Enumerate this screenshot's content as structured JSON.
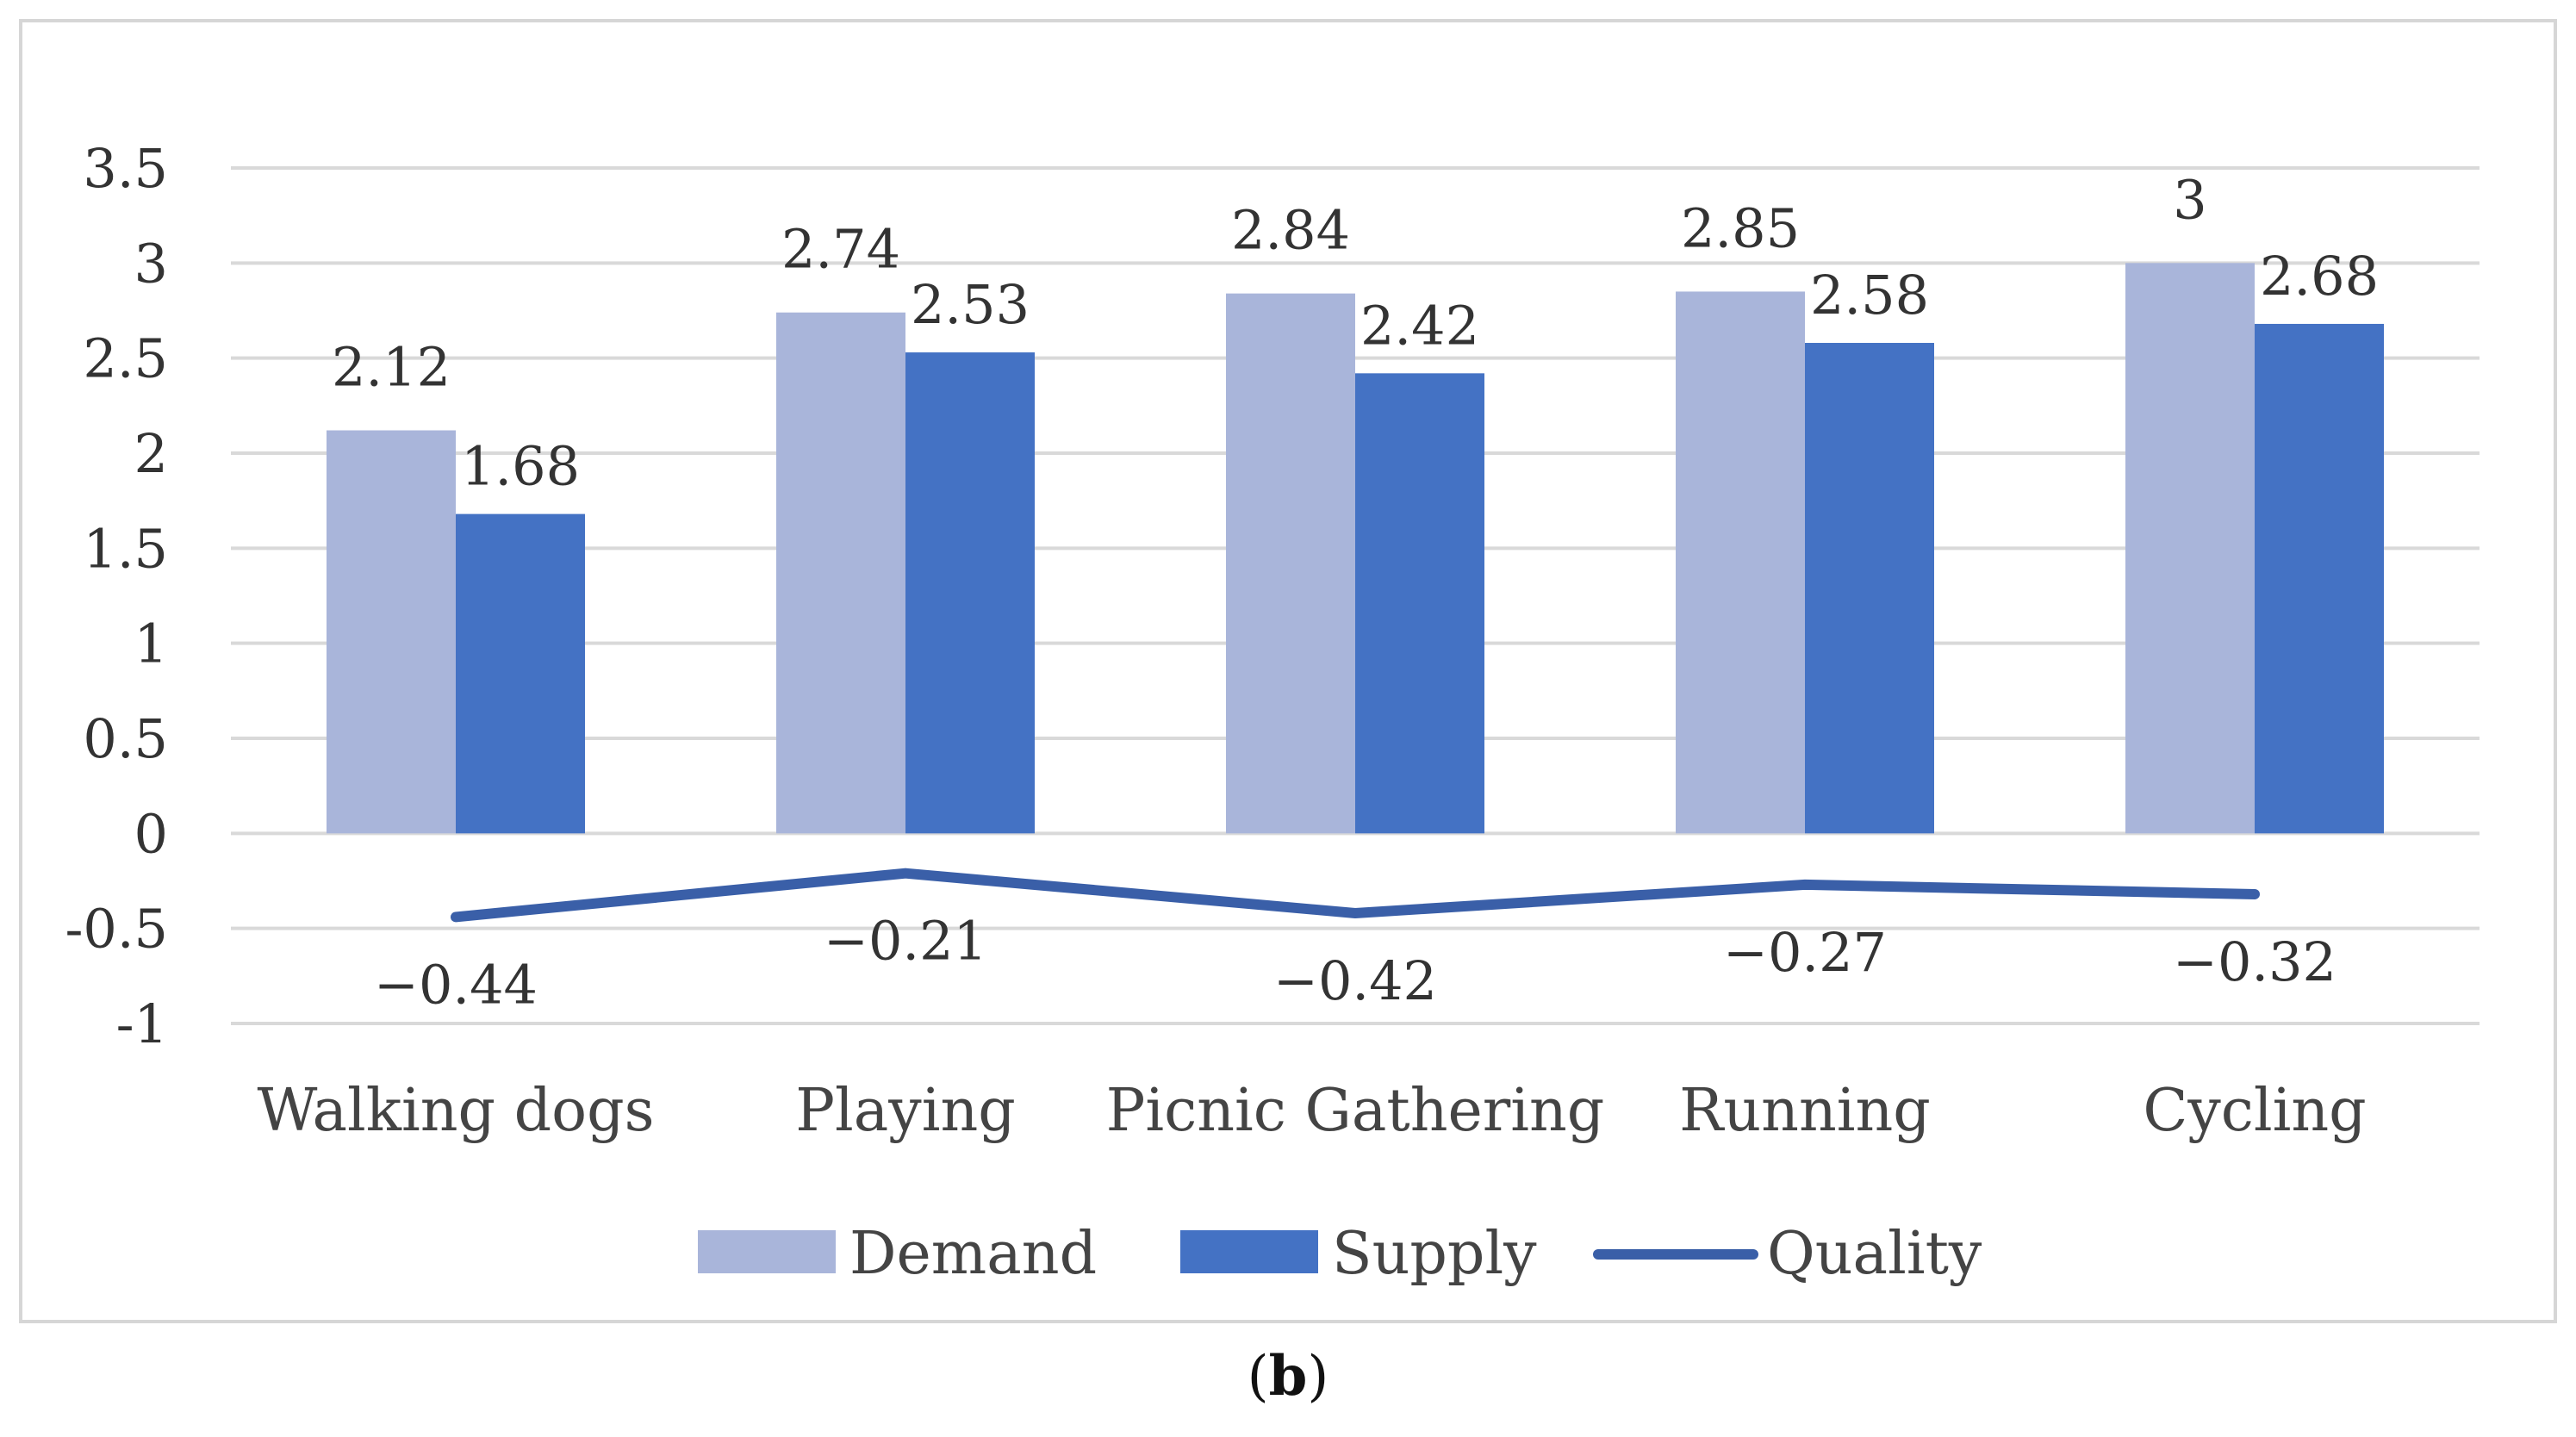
{
  "chart_data": {
    "type": "bar",
    "categories": [
      "Walking dogs",
      "Playing",
      "Picnic Gathering",
      "Running",
      "Cycling"
    ],
    "series": [
      {
        "name": "Demand",
        "kind": "bar",
        "color": "#a9b5da",
        "values": [
          2.12,
          2.74,
          2.84,
          2.85,
          3
        ],
        "labels": [
          "2.12",
          "2.74",
          "2.84",
          "2.85",
          "3"
        ]
      },
      {
        "name": "Supply",
        "kind": "bar",
        "color": "#4472c4",
        "values": [
          1.68,
          2.53,
          2.42,
          2.58,
          2.68
        ],
        "labels": [
          "1.68",
          "2.53",
          "2.42",
          "2.58",
          "2.68"
        ]
      },
      {
        "name": "Quality",
        "kind": "line",
        "color": "#3a5fa8",
        "values": [
          -0.44,
          -0.21,
          -0.42,
          -0.27,
          -0.32
        ],
        "labels": [
          "−0.44",
          "−0.21",
          "−0.42",
          "−0.27",
          "−0.32"
        ]
      }
    ],
    "yticks": [
      "3.5",
      "3",
      "2.5",
      "2",
      "1.5",
      "1",
      "0.5",
      "0",
      "-0.5",
      "-1"
    ],
    "ylim": [
      -1,
      3.5
    ],
    "grid": true,
    "legend": "bottom",
    "title": "",
    "xlabel": "",
    "ylabel": ""
  },
  "caption": {
    "open": "(",
    "letter": "b",
    "close": ")"
  }
}
